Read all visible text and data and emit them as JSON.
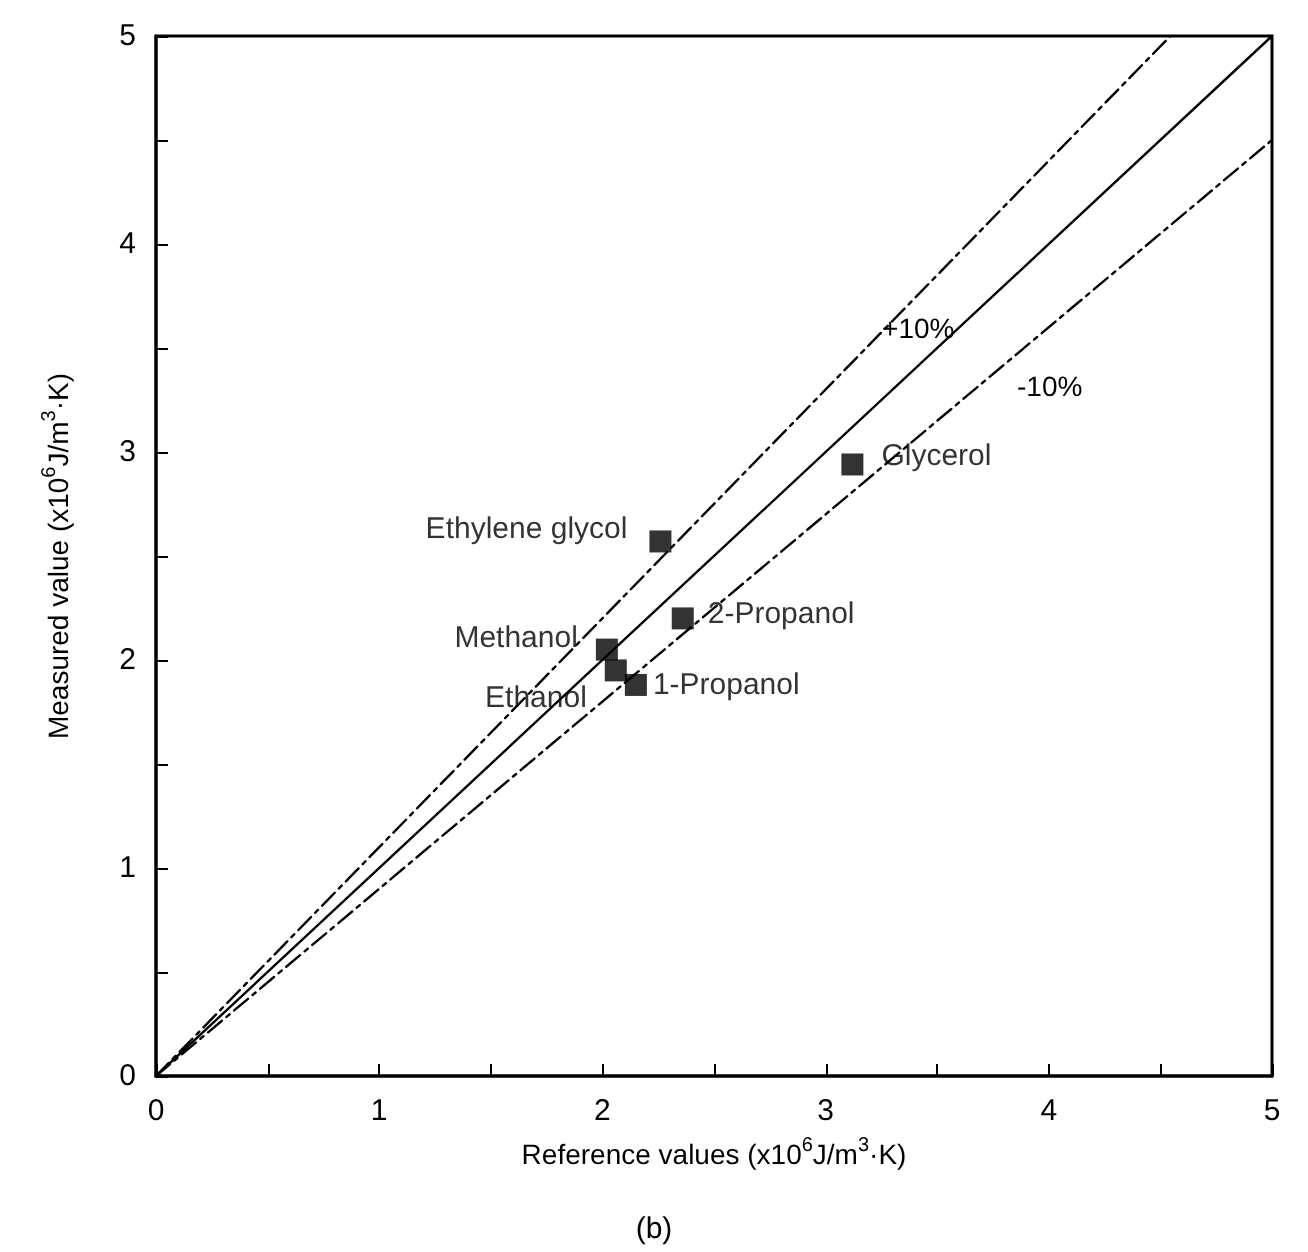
{
  "chart_data": {
    "type": "scatter",
    "xlabel": "Reference values (x10$^{6}$J/m$^{3}$·K)",
    "ylabel": "Measured value (x10$^{6}$J/m$^{3}$·K)",
    "xlim": [
      0,
      5
    ],
    "ylim": [
      0,
      5
    ],
    "xticks": [
      0,
      {
        "value": 0.5,
        "label": null
      },
      1,
      {
        "value": 1.5,
        "label": null
      },
      2,
      {
        "value": 2.5,
        "label": null
      },
      3,
      {
        "value": 3.5,
        "label": null
      },
      4,
      {
        "value": 4.5,
        "label": null
      },
      5
    ],
    "yticks": [
      0,
      {
        "value": 0.5,
        "label": null
      },
      1,
      {
        "value": 1.5,
        "label": null
      },
      2,
      {
        "value": 2.5,
        "label": null
      },
      3,
      {
        "value": 3.5,
        "label": null
      },
      4,
      {
        "value": 4.5,
        "label": null
      },
      5
    ],
    "grid": false,
    "legend": false,
    "marker": "square",
    "series": [
      {
        "type": "line",
        "color": "#000000",
        "x": [
          0,
          5
        ],
        "values": [
          0,
          5
        ],
        "line_style": "solid",
        "marker": "none"
      },
      {
        "type": "line",
        "name": "+10%",
        "color": "#000000",
        "x": [
          0,
          4.545
        ],
        "values": [
          0,
          5
        ],
        "line_style": "dashed",
        "marker": "none"
      },
      {
        "type": "line",
        "name": "-10%",
        "color": "#000000",
        "x": [
          0,
          5
        ],
        "values": [
          0,
          4.5
        ],
        "line_style": "dashed",
        "marker": "none"
      },
      {
        "name": "Glycerol",
        "color": "#000000",
        "x": [
          3.12
        ],
        "values": [
          2.94
        ]
      },
      {
        "name": "Ethylene glycol",
        "color": "#000000",
        "x": [
          2.26
        ],
        "values": [
          2.57
        ]
      },
      {
        "name": "2-Propanol",
        "color": "#000000",
        "x": [
          2.36
        ],
        "values": [
          2.2
        ]
      },
      {
        "name": "Methanol",
        "color": "#000000",
        "x": [
          2.02
        ],
        "values": [
          2.05
        ]
      },
      {
        "name": "Ethanol",
        "color": "#000000",
        "x": [
          2.06
        ],
        "values": [
          1.95
        ]
      },
      {
        "name": "1-Propanol",
        "color": "#000000",
        "x": [
          2.15
        ],
        "values": [
          1.88
        ]
      }
    ],
    "annotations": [
      "(b)"
    ]
  }
}
